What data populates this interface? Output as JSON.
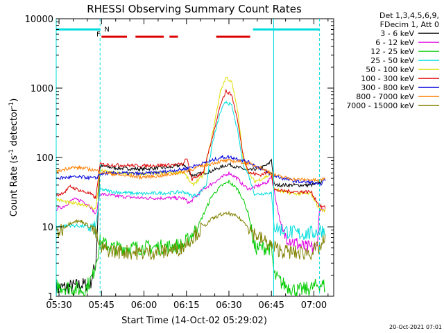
{
  "chart_data": {
    "type": "line",
    "title": "RHESSI Observing Summary Count Rates",
    "xlabel": "Start Time (14-Oct-02 05:29:02)",
    "ylabel_main": "Count Rate (s",
    "ylabel_sup": "-1",
    "ylabel_mid": " detector",
    "ylabel_sup2": "-1",
    "ylabel_end": ")",
    "y_scale": "log",
    "ylim": [
      1,
      10000
    ],
    "xlim_minutes": [
      0,
      98
    ],
    "x_ticks": [
      {
        "label": "05:30",
        "t": 1
      },
      {
        "label": "05:45",
        "t": 16
      },
      {
        "label": "06:00",
        "t": 31
      },
      {
        "label": "06:15",
        "t": 46
      },
      {
        "label": "06:30",
        "t": 61
      },
      {
        "label": "06:45",
        "t": 76
      },
      {
        "label": "07:00",
        "t": 91
      }
    ],
    "y_ticks": [
      {
        "label": "1",
        "v": 1
      },
      {
        "label": "10",
        "v": 10
      },
      {
        "label": "100",
        "v": 100
      },
      {
        "label": "1000",
        "v": 1000
      },
      {
        "label": "10000",
        "v": 10000
      }
    ],
    "legend_header": [
      "Det 1,3,4,5,6,9,",
      "FDecim 1, Att 0"
    ],
    "legend_position": "right",
    "series": [
      {
        "name": "3 - 6 keV",
        "color": "#000000",
        "points": [
          [
            0,
            1.3
          ],
          [
            12,
            1.5
          ],
          [
            14,
            3
          ],
          [
            15.5,
            75
          ],
          [
            22,
            70
          ],
          [
            30,
            68
          ],
          [
            40,
            72
          ],
          [
            45,
            80
          ],
          [
            48,
            55
          ],
          [
            54,
            62
          ],
          [
            58,
            72
          ],
          [
            61,
            80
          ],
          [
            64,
            72
          ],
          [
            68,
            65
          ],
          [
            72,
            70
          ],
          [
            75,
            80
          ],
          [
            76,
            95
          ],
          [
            77,
            40
          ],
          [
            79,
            40
          ],
          [
            85,
            40
          ],
          [
            90,
            40
          ],
          [
            92,
            42
          ],
          [
            94,
            45
          ]
        ]
      },
      {
        "name": "6 - 12 keV",
        "color": "#e000e0",
        "points": [
          [
            0,
            18
          ],
          [
            3,
            20
          ],
          [
            6,
            25
          ],
          [
            9,
            24
          ],
          [
            12,
            20
          ],
          [
            14,
            15
          ],
          [
            15.5,
            30
          ],
          [
            20,
            28
          ],
          [
            30,
            26
          ],
          [
            40,
            26
          ],
          [
            45,
            26
          ],
          [
            47,
            22
          ],
          [
            52,
            35
          ],
          [
            58,
            50
          ],
          [
            61,
            60
          ],
          [
            64,
            50
          ],
          [
            66,
            40
          ],
          [
            68,
            35
          ],
          [
            72,
            40
          ],
          [
            75,
            45
          ],
          [
            76,
            55
          ],
          [
            78,
            20
          ],
          [
            80,
            8
          ],
          [
            84,
            6
          ],
          [
            88,
            5
          ],
          [
            92,
            5
          ],
          [
            93,
            18
          ],
          [
            95,
            17
          ]
        ]
      },
      {
        "name": "12 - 25 keV",
        "color": "#00cc00",
        "points": [
          [
            0,
            1.4
          ],
          [
            6,
            1.3
          ],
          [
            10,
            1.2
          ],
          [
            13,
            2
          ],
          [
            15.5,
            6
          ],
          [
            20,
            5
          ],
          [
            30,
            5
          ],
          [
            40,
            5.2
          ],
          [
            45,
            5.5
          ],
          [
            50,
            10
          ],
          [
            55,
            28
          ],
          [
            58,
            38
          ],
          [
            61,
            45
          ],
          [
            64,
            35
          ],
          [
            66,
            25
          ],
          [
            68,
            15
          ],
          [
            70,
            5
          ],
          [
            74,
            5
          ],
          [
            76,
            5
          ],
          [
            77,
            2
          ],
          [
            80,
            1.5
          ],
          [
            85,
            1.2
          ],
          [
            90,
            1.3
          ],
          [
            93,
            1.5
          ],
          [
            95,
            1.4
          ]
        ]
      },
      {
        "name": "25 - 50 keV",
        "color": "#00dddd",
        "points": [
          [
            0,
            10
          ],
          [
            5,
            10.5
          ],
          [
            10,
            10.2
          ],
          [
            14,
            9.5
          ],
          [
            15.5,
            35
          ],
          [
            20,
            32
          ],
          [
            30,
            30
          ],
          [
            40,
            31
          ],
          [
            45,
            32
          ],
          [
            48,
            28
          ],
          [
            50,
            29
          ],
          [
            53,
            40
          ],
          [
            55,
            150
          ],
          [
            58,
            450
          ],
          [
            60,
            650
          ],
          [
            62,
            550
          ],
          [
            64,
            250
          ],
          [
            66,
            80
          ],
          [
            68,
            55
          ],
          [
            70,
            30
          ],
          [
            72,
            30
          ],
          [
            75,
            31
          ],
          [
            76,
            30
          ],
          [
            77,
            10
          ],
          [
            80,
            9
          ],
          [
            85,
            8
          ],
          [
            90,
            8
          ],
          [
            93,
            9
          ],
          [
            95,
            9
          ]
        ]
      },
      {
        "name": "50 - 100 keV",
        "color": "#dddd00",
        "points": [
          [
            0,
            25
          ],
          [
            5,
            22
          ],
          [
            10,
            21
          ],
          [
            14,
            18
          ],
          [
            15.5,
            65
          ],
          [
            20,
            60
          ],
          [
            30,
            58
          ],
          [
            40,
            60
          ],
          [
            45,
            62
          ],
          [
            48,
            40
          ],
          [
            52,
            55
          ],
          [
            55,
            200
          ],
          [
            58,
            900
          ],
          [
            60,
            1450
          ],
          [
            62,
            1200
          ],
          [
            64,
            500
          ],
          [
            66,
            100
          ],
          [
            68,
            60
          ],
          [
            70,
            45
          ],
          [
            72,
            48
          ],
          [
            75,
            55
          ],
          [
            76,
            60
          ],
          [
            77,
            35
          ],
          [
            80,
            32
          ],
          [
            85,
            30
          ],
          [
            90,
            30
          ],
          [
            93,
            18
          ],
          [
            95,
            17
          ]
        ]
      },
      {
        "name": "100 - 300 keV",
        "color": "#dd0000",
        "points": [
          [
            0,
            28
          ],
          [
            3,
            32
          ],
          [
            5,
            38
          ],
          [
            8,
            34
          ],
          [
            12,
            30
          ],
          [
            14,
            26
          ],
          [
            15.5,
            80
          ],
          [
            20,
            78
          ],
          [
            30,
            76
          ],
          [
            40,
            78
          ],
          [
            45,
            80
          ],
          [
            46,
            100
          ],
          [
            48,
            48
          ],
          [
            52,
            62
          ],
          [
            55,
            180
          ],
          [
            58,
            600
          ],
          [
            60,
            900
          ],
          [
            62,
            800
          ],
          [
            64,
            350
          ],
          [
            66,
            110
          ],
          [
            68,
            60
          ],
          [
            72,
            56
          ],
          [
            75,
            62
          ],
          [
            76,
            60
          ],
          [
            77,
            34
          ],
          [
            80,
            33
          ],
          [
            85,
            32
          ],
          [
            90,
            32
          ],
          [
            93,
            20
          ],
          [
            95,
            19
          ]
        ]
      },
      {
        "name": "300 - 800 keV",
        "color": "#0000dd",
        "points": [
          [
            0,
            50
          ],
          [
            5,
            52
          ],
          [
            10,
            52
          ],
          [
            14,
            50
          ],
          [
            15.5,
            58
          ],
          [
            22,
            60
          ],
          [
            30,
            58
          ],
          [
            38,
            62
          ],
          [
            45,
            68
          ],
          [
            50,
            78
          ],
          [
            55,
            90
          ],
          [
            58,
            100
          ],
          [
            61,
            102
          ],
          [
            64,
            96
          ],
          [
            68,
            85
          ],
          [
            72,
            70
          ],
          [
            75,
            60
          ],
          [
            77,
            55
          ],
          [
            80,
            50
          ],
          [
            85,
            45
          ],
          [
            90,
            44
          ],
          [
            93,
            40
          ],
          [
            95,
            48
          ]
        ]
      },
      {
        "name": "800 - 7000 keV",
        "color": "#ff7f00",
        "points": [
          [
            0,
            62
          ],
          [
            5,
            72
          ],
          [
            10,
            70
          ],
          [
            14,
            65
          ],
          [
            15.5,
            62
          ],
          [
            22,
            56
          ],
          [
            30,
            52
          ],
          [
            38,
            55
          ],
          [
            45,
            62
          ],
          [
            50,
            72
          ],
          [
            55,
            82
          ],
          [
            58,
            88
          ],
          [
            61,
            90
          ],
          [
            64,
            88
          ],
          [
            68,
            82
          ],
          [
            72,
            72
          ],
          [
            75,
            62
          ],
          [
            77,
            56
          ],
          [
            80,
            52
          ],
          [
            85,
            48
          ],
          [
            90,
            48
          ],
          [
            93,
            46
          ],
          [
            95,
            52
          ]
        ]
      },
      {
        "name": "7000 - 15000 keV",
        "color": "#808000",
        "points": [
          [
            0,
            8
          ],
          [
            3,
            10
          ],
          [
            6,
            12
          ],
          [
            9,
            12
          ],
          [
            12,
            10
          ],
          [
            14,
            8
          ],
          [
            15.5,
            5
          ],
          [
            20,
            4.5
          ],
          [
            30,
            4.2
          ],
          [
            38,
            4.4
          ],
          [
            44,
            5
          ],
          [
            48,
            7
          ],
          [
            52,
            10
          ],
          [
            55,
            13
          ],
          [
            58,
            15
          ],
          [
            61,
            15.5
          ],
          [
            64,
            14
          ],
          [
            67,
            11
          ],
          [
            70,
            8
          ],
          [
            74,
            6
          ],
          [
            77,
            5
          ],
          [
            80,
            4.5
          ],
          [
            85,
            4.2
          ],
          [
            90,
            4.3
          ],
          [
            93,
            5
          ],
          [
            95,
            6.5
          ]
        ]
      }
    ],
    "flag_line": {
      "color": "#00dddd",
      "value": 7000,
      "segments": [
        [
          0,
          15.5
        ],
        [
          69.5,
          93
        ]
      ],
      "markers": [
        {
          "label": "N",
          "t": 17
        },
        {
          "label": "F",
          "t": 14.2,
          "color": "#dd0000"
        }
      ]
    },
    "red_segments": {
      "color": "#dd0000",
      "value": 5500,
      "segments": [
        [
          16,
          25
        ],
        [
          28,
          38
        ],
        [
          40,
          43
        ],
        [
          56.5,
          68.5
        ]
      ]
    },
    "vertical_lines": [
      {
        "t": 0,
        "style": "solid",
        "color": "#00dddd"
      },
      {
        "t": 15.5,
        "style": "dashed",
        "color": "#00dddd"
      },
      {
        "t": 76.8,
        "style": "solid",
        "color": "#00dddd"
      },
      {
        "t": 93,
        "style": "dashed",
        "color": "#00dddd"
      }
    ]
  },
  "footer_date": "20-Oct-2021 07:01"
}
